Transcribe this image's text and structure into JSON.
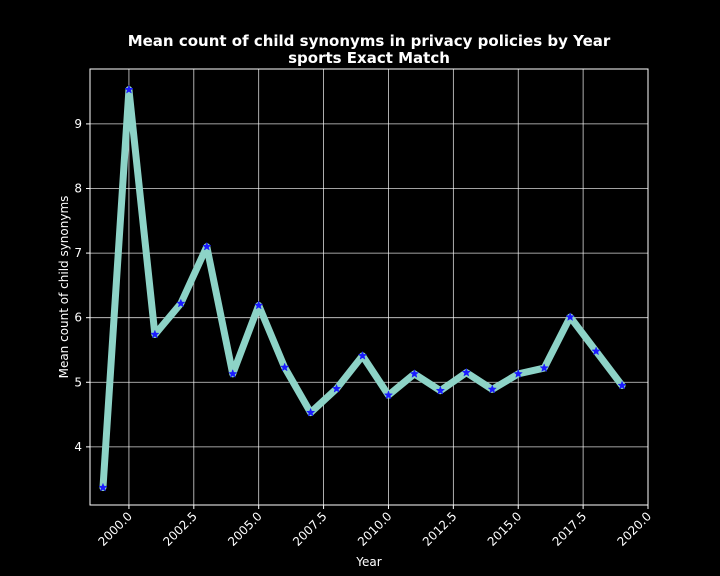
{
  "chart_data": {
    "type": "line",
    "title": "Mean count of child synonyms in privacy policies by Year",
    "subtitle": "sports Exact Match",
    "xlabel": "Year",
    "ylabel": "Mean count of child synonyms",
    "xlim": [
      1998.5,
      2020.0
    ],
    "ylim": [
      3.1,
      9.85
    ],
    "x_ticks": [
      2000.0,
      2002.5,
      2005.0,
      2007.5,
      2010.0,
      2012.5,
      2015.0,
      2017.5,
      2020.0
    ],
    "x_tick_labels": [
      "2000.0",
      "2002.5",
      "2005.0",
      "2007.5",
      "2010.0",
      "2012.5",
      "2015.0",
      "2017.5",
      "2020.0"
    ],
    "y_ticks": [
      4,
      5,
      6,
      7,
      8,
      9
    ],
    "y_tick_labels": [
      "4",
      "5",
      "6",
      "7",
      "8",
      "9"
    ],
    "grid": true,
    "series": [
      {
        "x": [
          1999,
          2000,
          2001,
          2002,
          2003,
          2004,
          2005,
          2006,
          2007,
          2008,
          2009,
          2010,
          2011,
          2012,
          2013,
          2014,
          2015,
          2016,
          2017,
          2018,
          2019
        ],
        "y": [
          3.37,
          9.53,
          5.74,
          6.22,
          7.1,
          5.13,
          6.19,
          5.23,
          4.53,
          4.9,
          5.41,
          4.8,
          5.13,
          4.87,
          5.15,
          4.89,
          5.13,
          5.22,
          6.01,
          5.48,
          4.95
        ],
        "line_color": "#8dd3c7",
        "marker_color": "#1a1aff",
        "marker": "star"
      }
    ],
    "colors": {
      "background": "#000000",
      "text": "#ffffff",
      "grid": "#ffffff"
    }
  }
}
